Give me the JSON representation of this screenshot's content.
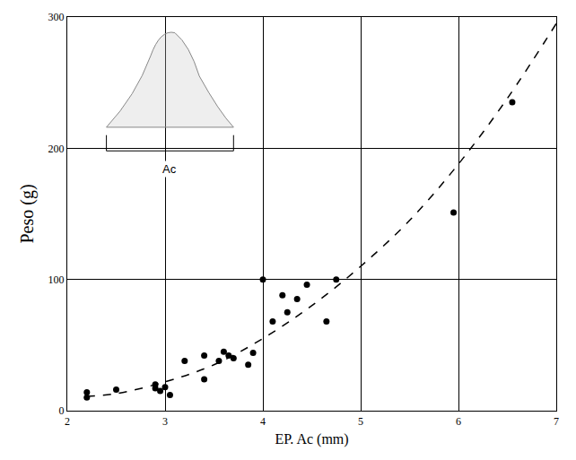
{
  "chart_data": {
    "type": "scatter",
    "x_label": "EP. Ac (mm)",
    "y_label": "Peso (g)",
    "annotations": [
      "Ac"
    ],
    "xlim": [
      2,
      7
    ],
    "xticks": [
      2,
      3,
      4,
      5,
      6,
      7
    ],
    "ylim": [
      0,
      300
    ],
    "yticks": [
      0,
      100,
      200,
      300
    ],
    "grid": true,
    "series": [
      {
        "type": "scatter",
        "color": "#000000",
        "marker": "circle",
        "x": [
          2.2,
          2.2,
          2.5,
          2.9,
          2.9,
          2.95,
          3.0,
          3.05,
          3.2,
          3.4,
          3.4,
          3.55,
          3.6,
          3.65,
          3.7,
          3.85,
          3.9,
          4.0,
          4.1,
          4.2,
          4.25,
          4.35,
          4.45,
          4.65,
          4.75,
          5.95,
          6.55
        ],
        "values": [
          14,
          10,
          16,
          20,
          17,
          15,
          18,
          12,
          38,
          24,
          42,
          38,
          45,
          42,
          40,
          35,
          44,
          100,
          68,
          88,
          75,
          85,
          96,
          68,
          100,
          151,
          235
        ]
      },
      {
        "type": "line",
        "color": "#000000",
        "line_style": "dashed",
        "x": [
          2.2,
          2.5,
          3,
          3.5,
          4,
          4.5,
          5,
          5.5,
          6,
          6.5,
          7
        ],
        "values": [
          11,
          13,
          22,
          35,
          55,
          80,
          110,
          145,
          188,
          238,
          295
        ]
      }
    ]
  }
}
